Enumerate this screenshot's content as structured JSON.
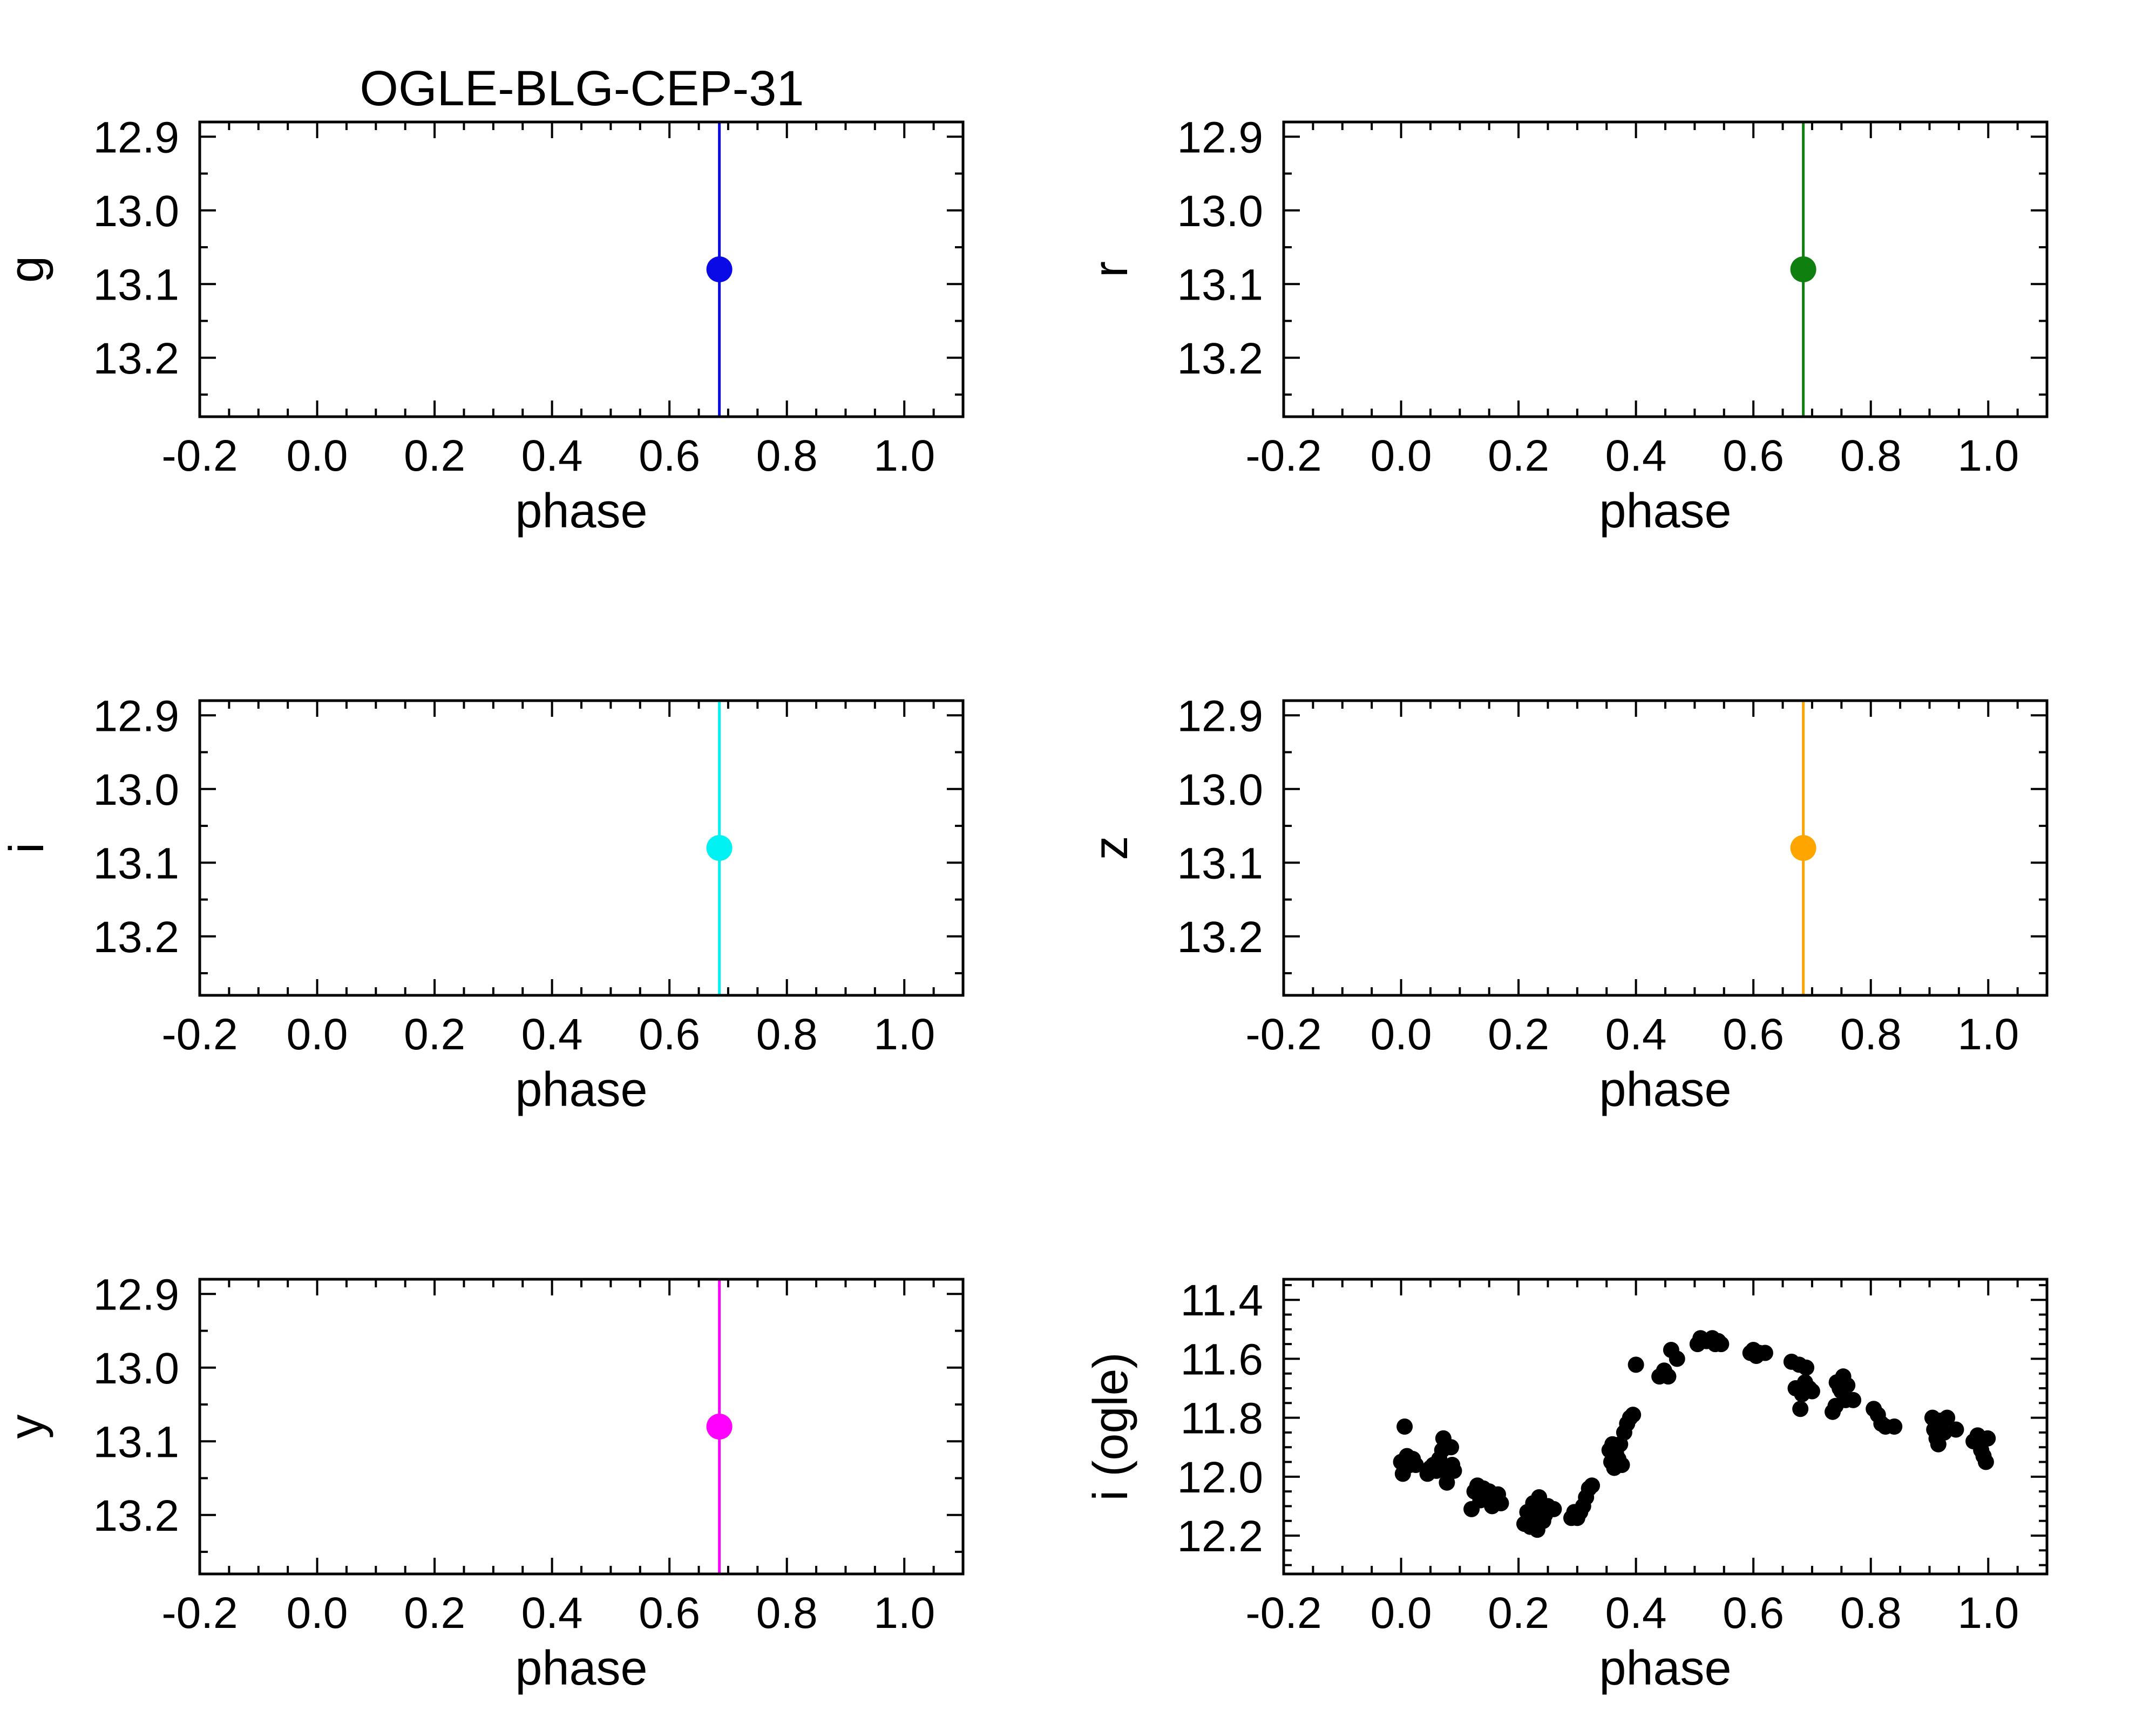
{
  "figure_title": "OGLE-BLG-CEP-31",
  "chart_data": [
    {
      "type": "scatter",
      "panel": "g",
      "ylabel": "g",
      "xlabel": "phase",
      "xlim": [
        -0.2,
        1.1
      ],
      "ylim": [
        13.28,
        12.88
      ],
      "y_inverted": true,
      "xticks": [
        "-0.2",
        "0.0",
        "0.2",
        "0.4",
        "0.6",
        "0.8",
        "1.0"
      ],
      "yticks": [
        "12.9",
        "13.0",
        "13.1",
        "13.2"
      ],
      "color": "#0a0ae6",
      "points": [
        {
          "x": 0.685,
          "y": 13.08
        }
      ],
      "error_bars": "vertical line spanning full axis at x = 0.685"
    },
    {
      "type": "scatter",
      "panel": "r",
      "ylabel": "r",
      "xlabel": "phase",
      "xlim": [
        -0.2,
        1.1
      ],
      "ylim": [
        13.28,
        12.88
      ],
      "y_inverted": true,
      "xticks": [
        "-0.2",
        "0.0",
        "0.2",
        "0.4",
        "0.6",
        "0.8",
        "1.0"
      ],
      "yticks": [
        "12.9",
        "13.0",
        "13.1",
        "13.2"
      ],
      "color": "#0f7f0f",
      "points": [
        {
          "x": 0.685,
          "y": 13.08
        }
      ],
      "error_bars": "vertical line spanning full axis at x = 0.685"
    },
    {
      "type": "scatter",
      "panel": "i",
      "ylabel": "i",
      "xlabel": "phase",
      "xlim": [
        -0.2,
        1.1
      ],
      "ylim": [
        13.28,
        12.88
      ],
      "y_inverted": true,
      "xticks": [
        "-0.2",
        "0.0",
        "0.2",
        "0.4",
        "0.6",
        "0.8",
        "1.0"
      ],
      "yticks": [
        "12.9",
        "13.0",
        "13.1",
        "13.2"
      ],
      "color": "#00f2f2",
      "points": [
        {
          "x": 0.685,
          "y": 13.08
        }
      ],
      "error_bars": "vertical line spanning full axis at x = 0.685"
    },
    {
      "type": "scatter",
      "panel": "z",
      "ylabel": "z",
      "xlabel": "phase",
      "xlim": [
        -0.2,
        1.1
      ],
      "ylim": [
        13.28,
        12.88
      ],
      "y_inverted": true,
      "xticks": [
        "-0.2",
        "0.0",
        "0.2",
        "0.4",
        "0.6",
        "0.8",
        "1.0"
      ],
      "yticks": [
        "12.9",
        "13.0",
        "13.1",
        "13.2"
      ],
      "color": "#ffa500",
      "points": [
        {
          "x": 0.685,
          "y": 13.08
        }
      ],
      "error_bars": "vertical line spanning full axis at x = 0.685"
    },
    {
      "type": "scatter",
      "panel": "y",
      "ylabel": "y",
      "xlabel": "phase",
      "xlim": [
        -0.2,
        1.1
      ],
      "ylim": [
        13.28,
        12.88
      ],
      "y_inverted": true,
      "xticks": [
        "-0.2",
        "0.0",
        "0.2",
        "0.4",
        "0.6",
        "0.8",
        "1.0"
      ],
      "yticks": [
        "12.9",
        "13.0",
        "13.1",
        "13.2"
      ],
      "color": "#ff00ff",
      "points": [
        {
          "x": 0.685,
          "y": 13.08
        }
      ],
      "error_bars": "vertical line spanning full axis at x = 0.685"
    },
    {
      "type": "scatter",
      "panel": "i (ogle)",
      "ylabel": "i (ogle)",
      "xlabel": "phase",
      "xlim": [
        -0.2,
        1.1
      ],
      "ylim": [
        12.33,
        11.33
      ],
      "y_inverted": true,
      "xticks": [
        "-0.2",
        "0.0",
        "0.2",
        "0.4",
        "0.6",
        "0.8",
        "1.0"
      ],
      "yticks": [
        "11.4",
        "11.6",
        "11.8",
        "12.0",
        "12.2"
      ],
      "color": "#000000",
      "points": [
        {
          "x": 0.0,
          "y": 11.95
        },
        {
          "x": 0.003,
          "y": 11.99
        },
        {
          "x": 0.006,
          "y": 11.83
        },
        {
          "x": 0.01,
          "y": 11.93
        },
        {
          "x": 0.015,
          "y": 11.96
        },
        {
          "x": 0.02,
          "y": 11.94
        },
        {
          "x": 0.025,
          "y": 11.96
        },
        {
          "x": 0.045,
          "y": 11.99
        },
        {
          "x": 0.05,
          "y": 11.97
        },
        {
          "x": 0.055,
          "y": 11.96
        },
        {
          "x": 0.06,
          "y": 11.98
        },
        {
          "x": 0.065,
          "y": 11.94
        },
        {
          "x": 0.07,
          "y": 11.91
        },
        {
          "x": 0.072,
          "y": 11.87
        },
        {
          "x": 0.075,
          "y": 11.97
        },
        {
          "x": 0.078,
          "y": 12.02
        },
        {
          "x": 0.08,
          "y": 11.99
        },
        {
          "x": 0.085,
          "y": 11.9
        },
        {
          "x": 0.087,
          "y": 11.96
        },
        {
          "x": 0.09,
          "y": 11.98
        },
        {
          "x": 0.12,
          "y": 12.11
        },
        {
          "x": 0.125,
          "y": 12.05
        },
        {
          "x": 0.13,
          "y": 12.03
        },
        {
          "x": 0.135,
          "y": 12.08
        },
        {
          "x": 0.14,
          "y": 12.04
        },
        {
          "x": 0.145,
          "y": 12.07
        },
        {
          "x": 0.15,
          "y": 12.05
        },
        {
          "x": 0.155,
          "y": 12.1
        },
        {
          "x": 0.16,
          "y": 12.08
        },
        {
          "x": 0.165,
          "y": 12.06
        },
        {
          "x": 0.17,
          "y": 12.09
        },
        {
          "x": 0.21,
          "y": 12.16
        },
        {
          "x": 0.215,
          "y": 12.12
        },
        {
          "x": 0.22,
          "y": 12.17
        },
        {
          "x": 0.225,
          "y": 12.09
        },
        {
          "x": 0.228,
          "y": 12.13
        },
        {
          "x": 0.232,
          "y": 12.18
        },
        {
          "x": 0.235,
          "y": 12.07
        },
        {
          "x": 0.238,
          "y": 12.11
        },
        {
          "x": 0.242,
          "y": 12.15
        },
        {
          "x": 0.245,
          "y": 12.13
        },
        {
          "x": 0.25,
          "y": 12.1
        },
        {
          "x": 0.26,
          "y": 12.11
        },
        {
          "x": 0.29,
          "y": 12.14
        },
        {
          "x": 0.295,
          "y": 12.12
        },
        {
          "x": 0.3,
          "y": 12.14
        },
        {
          "x": 0.305,
          "y": 12.12
        },
        {
          "x": 0.31,
          "y": 12.1
        },
        {
          "x": 0.315,
          "y": 12.07
        },
        {
          "x": 0.32,
          "y": 12.04
        },
        {
          "x": 0.325,
          "y": 12.03
        },
        {
          "x": 0.355,
          "y": 11.91
        },
        {
          "x": 0.358,
          "y": 11.95
        },
        {
          "x": 0.36,
          "y": 11.89
        },
        {
          "x": 0.363,
          "y": 11.97
        },
        {
          "x": 0.366,
          "y": 11.92
        },
        {
          "x": 0.37,
          "y": 11.94
        },
        {
          "x": 0.373,
          "y": 11.89
        },
        {
          "x": 0.376,
          "y": 11.96
        },
        {
          "x": 0.38,
          "y": 11.85
        },
        {
          "x": 0.385,
          "y": 11.82
        },
        {
          "x": 0.39,
          "y": 11.8
        },
        {
          "x": 0.395,
          "y": 11.79
        },
        {
          "x": 0.4,
          "y": 11.62
        },
        {
          "x": 0.44,
          "y": 11.66
        },
        {
          "x": 0.448,
          "y": 11.64
        },
        {
          "x": 0.455,
          "y": 11.66
        },
        {
          "x": 0.46,
          "y": 11.57
        },
        {
          "x": 0.47,
          "y": 11.6
        },
        {
          "x": 0.505,
          "y": 11.55
        },
        {
          "x": 0.51,
          "y": 11.53
        },
        {
          "x": 0.52,
          "y": 11.54
        },
        {
          "x": 0.53,
          "y": 11.53
        },
        {
          "x": 0.535,
          "y": 11.55
        },
        {
          "x": 0.54,
          "y": 11.54
        },
        {
          "x": 0.545,
          "y": 11.55
        },
        {
          "x": 0.595,
          "y": 11.58
        },
        {
          "x": 0.6,
          "y": 11.57
        },
        {
          "x": 0.605,
          "y": 11.59
        },
        {
          "x": 0.61,
          "y": 11.58
        },
        {
          "x": 0.62,
          "y": 11.58
        },
        {
          "x": 0.665,
          "y": 11.61
        },
        {
          "x": 0.672,
          "y": 11.7
        },
        {
          "x": 0.678,
          "y": 11.62
        },
        {
          "x": 0.68,
          "y": 11.77
        },
        {
          "x": 0.683,
          "y": 11.72
        },
        {
          "x": 0.688,
          "y": 11.68
        },
        {
          "x": 0.69,
          "y": 11.63
        },
        {
          "x": 0.695,
          "y": 11.7
        },
        {
          "x": 0.7,
          "y": 11.71
        },
        {
          "x": 0.735,
          "y": 11.78
        },
        {
          "x": 0.74,
          "y": 11.76
        },
        {
          "x": 0.742,
          "y": 11.68
        },
        {
          "x": 0.747,
          "y": 11.7
        },
        {
          "x": 0.75,
          "y": 11.71
        },
        {
          "x": 0.753,
          "y": 11.66
        },
        {
          "x": 0.757,
          "y": 11.74
        },
        {
          "x": 0.76,
          "y": 11.69
        },
        {
          "x": 0.77,
          "y": 11.74
        },
        {
          "x": 0.805,
          "y": 11.77
        },
        {
          "x": 0.812,
          "y": 11.79
        },
        {
          "x": 0.818,
          "y": 11.82
        },
        {
          "x": 0.825,
          "y": 11.83
        },
        {
          "x": 0.84,
          "y": 11.83
        },
        {
          "x": 0.905,
          "y": 11.8
        },
        {
          "x": 0.908,
          "y": 11.84
        },
        {
          "x": 0.912,
          "y": 11.87
        },
        {
          "x": 0.915,
          "y": 11.89
        },
        {
          "x": 0.918,
          "y": 11.81
        },
        {
          "x": 0.925,
          "y": 11.85
        },
        {
          "x": 0.93,
          "y": 11.8
        },
        {
          "x": 0.945,
          "y": 11.84
        },
        {
          "x": 0.975,
          "y": 11.88
        },
        {
          "x": 0.982,
          "y": 11.86
        },
        {
          "x": 0.988,
          "y": 11.91
        },
        {
          "x": 0.992,
          "y": 11.93
        },
        {
          "x": 0.996,
          "y": 11.95
        },
        {
          "x": 0.999,
          "y": 11.87
        }
      ]
    }
  ]
}
